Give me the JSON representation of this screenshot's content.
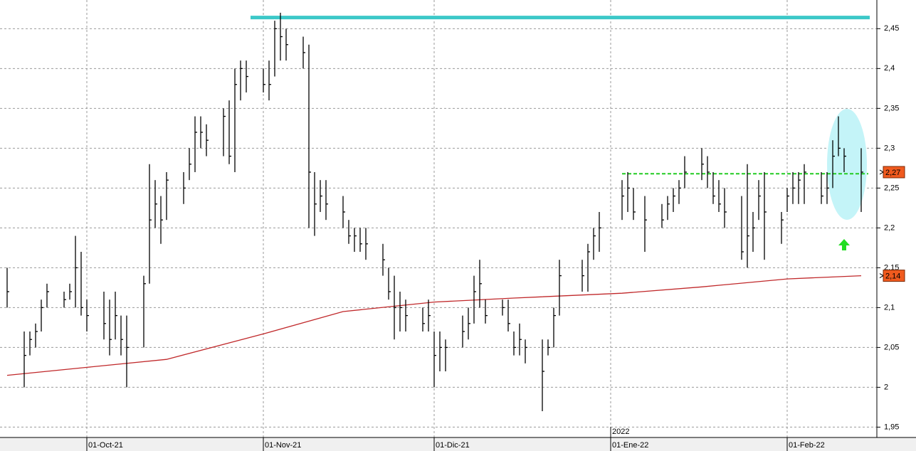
{
  "chart_data": {
    "type": "ohlc",
    "x": [
      "17-Sep-21",
      "20-Sep-21",
      "21-Sep-21",
      "22-Sep-21",
      "23-Sep-21",
      "24-Sep-21",
      "27-Sep-21",
      "28-Sep-21",
      "29-Sep-21",
      "30-Sep-21",
      "01-Oct-21",
      "04-Oct-21",
      "05-Oct-21",
      "06-Oct-21",
      "07-Oct-21",
      "08-Oct-21",
      "11-Oct-21",
      "12-Oct-21",
      "13-Oct-21",
      "14-Oct-21",
      "15-Oct-21",
      "18-Oct-21",
      "19-Oct-21",
      "20-Oct-21",
      "21-Oct-21",
      "22-Oct-21",
      "25-Oct-21",
      "26-Oct-21",
      "27-Oct-21",
      "28-Oct-21",
      "29-Oct-21",
      "01-Nov-21",
      "02-Nov-21",
      "03-Nov-21",
      "04-Nov-21",
      "05-Nov-21",
      "08-Nov-21",
      "09-Nov-21",
      "10-Nov-21",
      "11-Nov-21",
      "12-Nov-21",
      "15-Nov-21",
      "16-Nov-21",
      "17-Nov-21",
      "18-Nov-21",
      "19-Nov-21",
      "22-Nov-21",
      "23-Nov-21",
      "24-Nov-21",
      "25-Nov-21",
      "26-Nov-21",
      "29-Nov-21",
      "30-Nov-21",
      "01-Dic-21",
      "02-Dic-21",
      "03-Dic-21",
      "06-Dic-21",
      "07-Dic-21",
      "08-Dic-21",
      "09-Dic-21",
      "10-Dic-21",
      "13-Dic-21",
      "14-Dic-21",
      "15-Dic-21",
      "16-Dic-21",
      "17-Dic-21",
      "20-Dic-21",
      "21-Dic-21",
      "22-Dic-21",
      "23-Dic-21",
      "27-Dic-21",
      "28-Dic-21",
      "29-Dic-21",
      "30-Dic-21",
      "03-Ene-22",
      "04-Ene-22",
      "05-Ene-22",
      "07-Ene-22",
      "10-Ene-22",
      "11-Ene-22",
      "12-Ene-22",
      "13-Ene-22",
      "14-Ene-22",
      "17-Ene-22",
      "18-Ene-22",
      "19-Ene-22",
      "20-Ene-22",
      "21-Ene-22",
      "24-Ene-22",
      "25-Ene-22",
      "26-Ene-22",
      "27-Ene-22",
      "28-Ene-22",
      "31-Ene-22",
      "01-Feb-22",
      "02-Feb-22",
      "03-Feb-22",
      "04-Feb-22",
      "07-Feb-22",
      "08-Feb-22",
      "09-Feb-22",
      "10-Feb-22",
      "11-Feb-22",
      "14-Feb-22"
    ],
    "high": [
      2.15,
      2.07,
      2.07,
      2.08,
      2.11,
      2.13,
      2.12,
      2.13,
      2.19,
      2.17,
      2.11,
      2.12,
      2.11,
      2.12,
      2.09,
      2.09,
      2.14,
      2.28,
      2.26,
      2.24,
      2.27,
      2.27,
      2.3,
      2.34,
      2.34,
      2.33,
      2.35,
      2.36,
      2.4,
      2.41,
      2.41,
      2.4,
      2.41,
      2.46,
      2.47,
      2.45,
      2.44,
      2.43,
      2.27,
      2.26,
      2.26,
      2.24,
      2.21,
      2.2,
      2.2,
      2.2,
      2.18,
      2.15,
      2.14,
      2.12,
      2.11,
      2.1,
      2.11,
      2.07,
      2.07,
      2.06,
      2.09,
      2.1,
      2.14,
      2.16,
      2.11,
      2.11,
      2.11,
      2.07,
      2.08,
      2.06,
      2.06,
      2.06,
      2.1,
      2.16,
      2.16,
      2.18,
      2.2,
      2.22,
      2.26,
      2.27,
      2.25,
      2.24,
      2.23,
      2.24,
      2.25,
      2.26,
      2.29,
      2.3,
      2.29,
      2.27,
      2.26,
      2.25,
      2.24,
      2.28,
      2.22,
      2.26,
      2.27,
      2.22,
      2.25,
      2.27,
      2.27,
      2.28,
      2.27,
      2.27,
      2.31,
      2.34,
      2.3,
      2.3
    ],
    "low": [
      2.1,
      2.0,
      2.04,
      2.05,
      2.07,
      2.1,
      2.1,
      2.11,
      2.1,
      2.09,
      2.07,
      2.06,
      2.04,
      2.06,
      2.04,
      2.0,
      2.05,
      2.13,
      2.2,
      2.18,
      2.21,
      2.23,
      2.26,
      2.27,
      2.3,
      2.29,
      2.29,
      2.28,
      2.27,
      2.36,
      2.37,
      2.37,
      2.36,
      2.39,
      2.41,
      2.41,
      2.4,
      2.2,
      2.19,
      2.22,
      2.21,
      2.2,
      2.18,
      2.17,
      2.17,
      2.16,
      2.14,
      2.11,
      2.06,
      2.07,
      2.07,
      2.07,
      2.07,
      2.0,
      2.02,
      2.02,
      2.05,
      2.06,
      2.08,
      2.1,
      2.08,
      2.09,
      2.07,
      2.04,
      2.04,
      2.03,
      1.97,
      2.04,
      2.05,
      2.09,
      2.12,
      2.12,
      2.16,
      2.17,
      2.21,
      2.22,
      2.21,
      2.17,
      2.2,
      2.21,
      2.22,
      2.23,
      2.25,
      2.26,
      2.25,
      2.23,
      2.22,
      2.2,
      2.16,
      2.15,
      2.17,
      2.21,
      2.16,
      2.18,
      2.22,
      2.23,
      2.23,
      2.23,
      2.23,
      2.23,
      2.25,
      2.29,
      2.27,
      2.22
    ],
    "close": [
      2.12,
      2.04,
      2.06,
      2.07,
      2.1,
      2.12,
      2.11,
      2.12,
      2.15,
      2.1,
      2.09,
      2.08,
      2.06,
      2.09,
      2.06,
      2.05,
      2.13,
      2.21,
      2.23,
      2.21,
      2.26,
      2.25,
      2.28,
      2.32,
      2.32,
      2.31,
      2.34,
      2.29,
      2.38,
      2.4,
      2.39,
      2.38,
      2.38,
      2.45,
      2.44,
      2.43,
      2.42,
      2.27,
      2.23,
      2.24,
      2.23,
      2.22,
      2.19,
      2.19,
      2.18,
      2.18,
      2.16,
      2.12,
      2.1,
      2.1,
      2.09,
      2.08,
      2.09,
      2.04,
      2.05,
      2.05,
      2.07,
      2.08,
      2.12,
      2.13,
      2.09,
      2.1,
      2.08,
      2.05,
      2.06,
      2.05,
      2.02,
      2.05,
      2.09,
      2.14,
      2.14,
      2.17,
      2.19,
      2.2,
      2.24,
      2.25,
      2.22,
      2.21,
      2.21,
      2.23,
      2.24,
      2.25,
      2.27,
      2.28,
      2.27,
      2.24,
      2.23,
      2.22,
      2.17,
      2.19,
      2.2,
      2.24,
      2.22,
      2.21,
      2.24,
      2.25,
      2.26,
      2.27,
      2.24,
      2.25,
      2.29,
      2.3,
      2.29,
      2.27
    ],
    "bar_color": "#000000",
    "moving_average": {
      "color": "#c0282a",
      "x": [
        "17-Sep-21",
        "01-Oct-21",
        "15-Oct-21",
        "01-Nov-21",
        "15-Nov-21",
        "01-Dic-21",
        "15-Dic-21",
        "03-Ene-22",
        "17-Ene-22",
        "01-Feb-22",
        "14-Feb-22"
      ],
      "values": [
        2.015,
        2.025,
        2.035,
        2.067,
        2.095,
        2.107,
        2.112,
        2.118,
        2.126,
        2.136,
        2.14
      ]
    },
    "levels": [
      {
        "value": 2.464,
        "color": "#3cc8c8",
        "dashed": false
      },
      {
        "value": 2.268,
        "color": "#22cc22",
        "dashed": true
      }
    ],
    "price_labels": [
      {
        "value": 2.27,
        "label": "2,27"
      },
      {
        "value": 2.14,
        "label": "2,14"
      }
    ],
    "year_label": "2022",
    "ylim": [
      1.937,
      2.486
    ],
    "yticks": [
      {
        "value": 1.95,
        "label": "1,95"
      },
      2,
      {
        "value": 2.05,
        "label": "2,05"
      },
      {
        "value": 2.1,
        "label": "2,1"
      },
      {
        "value": 2.15,
        "label": "2,15"
      },
      {
        "value": 2.2,
        "label": "2,2"
      },
      {
        "value": 2.25,
        "label": "2,25"
      },
      {
        "value": 2.3,
        "label": "2,3"
      },
      {
        "value": 2.35,
        "label": "2,35"
      },
      {
        "value": 2.4,
        "label": "2,4"
      },
      {
        "value": 2.45,
        "label": "2,45"
      }
    ],
    "xticks": [
      "01-Oct-21",
      "01-Nov-21",
      "01-Dic-21",
      "01-Ene-22",
      "01-Feb-22"
    ],
    "grid": true
  }
}
